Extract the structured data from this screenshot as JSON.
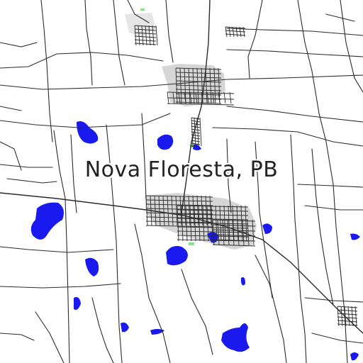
{
  "map": {
    "place_label": "Nova Floresta, PB",
    "colors": {
      "background": "#ffffff",
      "road": "#2b2b2b",
      "water": "#1a1aee",
      "urban_area": "#d6d6d6",
      "park": "#8ee08e",
      "label": "#222222"
    }
  }
}
